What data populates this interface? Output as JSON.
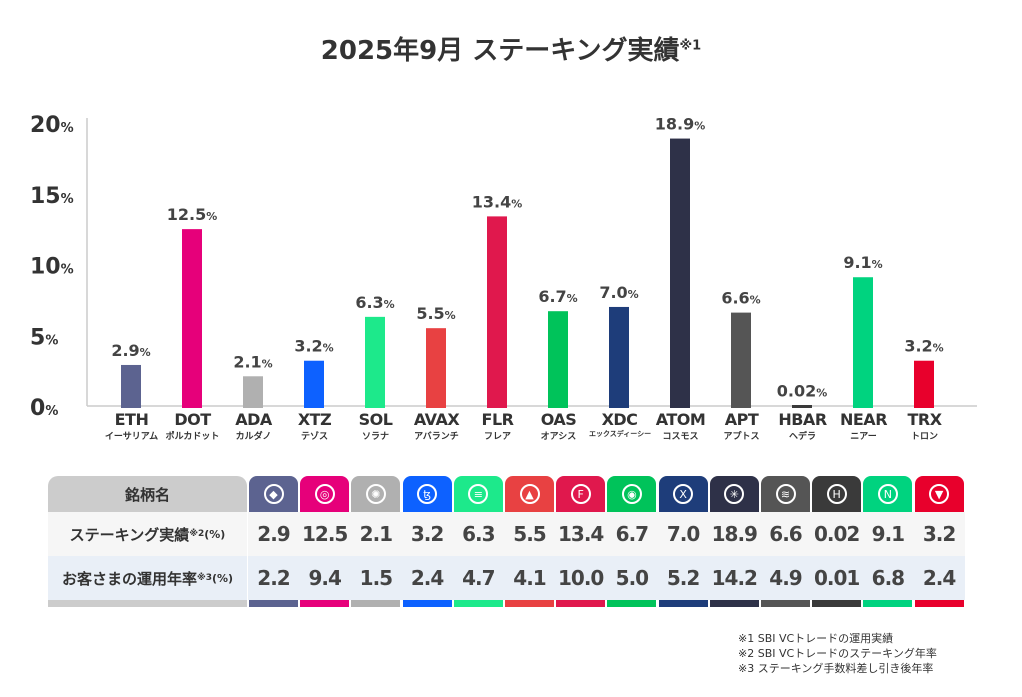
{
  "title": "2025年9月 ステーキング実績",
  "title_note": "※1",
  "chart_data": {
    "type": "bar",
    "title": "2025年9月 ステーキング実績※1",
    "categories": [
      "ETH",
      "DOT",
      "ADA",
      "XTZ",
      "SOL",
      "AVAX",
      "FLR",
      "OAS",
      "XDC",
      "ATOM",
      "APT",
      "HBAR",
      "NEAR",
      "TRX"
    ],
    "subcategories": [
      "イーサリアム",
      "ポルカドット",
      "カルダノ",
      "テゾス",
      "ソラナ",
      "アバランチ",
      "フレア",
      "オアシス",
      "エックスディーシー",
      "コスモス",
      "アプトス",
      "ヘデラ",
      "ニアー",
      "トロン"
    ],
    "values": [
      2.9,
      12.5,
      2.1,
      3.2,
      6.3,
      5.5,
      13.4,
      6.7,
      7.0,
      18.9,
      6.6,
      0.02,
      9.1,
      3.2
    ],
    "value_labels": [
      "2.9",
      "12.5",
      "2.1",
      "3.2",
      "6.3",
      "5.5",
      "13.4",
      "6.7",
      "7.0",
      "18.9",
      "6.6",
      "0.02",
      "9.1",
      "3.2"
    ],
    "colors": [
      "#5c6390",
      "#e6007a",
      "#b0b0b0",
      "#0d61ff",
      "#1de98b",
      "#e84142",
      "#e0184d",
      "#00c35a",
      "#1e3d7a",
      "#2e3148",
      "#555555",
      "#3a3a3a",
      "#00d37f",
      "#e8002c"
    ],
    "yticks": [
      "0",
      "5",
      "10",
      "15",
      "20"
    ],
    "ylim": [
      0,
      20
    ],
    "unit": "%",
    "xlabel": "",
    "ylabel": ""
  },
  "table": {
    "header_label": "銘柄名",
    "row1_label": "ステーキング実績",
    "row1_note": "※2",
    "row1_unit": "(%)",
    "row2_label": "お客さまの運用年率",
    "row2_note": "※3",
    "row2_unit": "(%)",
    "row1": [
      "2.9",
      "12.5",
      "2.1",
      "3.2",
      "6.3",
      "5.5",
      "13.4",
      "6.7",
      "7.0",
      "18.9",
      "6.6",
      "0.02",
      "9.1",
      "3.2"
    ],
    "row2": [
      "2.2",
      "9.4",
      "1.5",
      "2.4",
      "4.7",
      "4.1",
      "10.0",
      "5.0",
      "5.2",
      "14.2",
      "4.9",
      "0.01",
      "6.8",
      "2.4"
    ],
    "icons": [
      "ethereum-icon",
      "polkadot-icon",
      "cardano-icon",
      "tezos-icon",
      "solana-icon",
      "avalanche-icon",
      "flare-icon",
      "oasys-icon",
      "xdc-icon",
      "cosmos-icon",
      "aptos-icon",
      "hedera-icon",
      "near-icon",
      "tron-icon"
    ]
  },
  "notes": [
    "※1 SBI VCトレードの運用実績",
    "※2 SBI VCトレードのステーキング年率",
    "※3 ステーキング手数料差し引き後年率"
  ]
}
